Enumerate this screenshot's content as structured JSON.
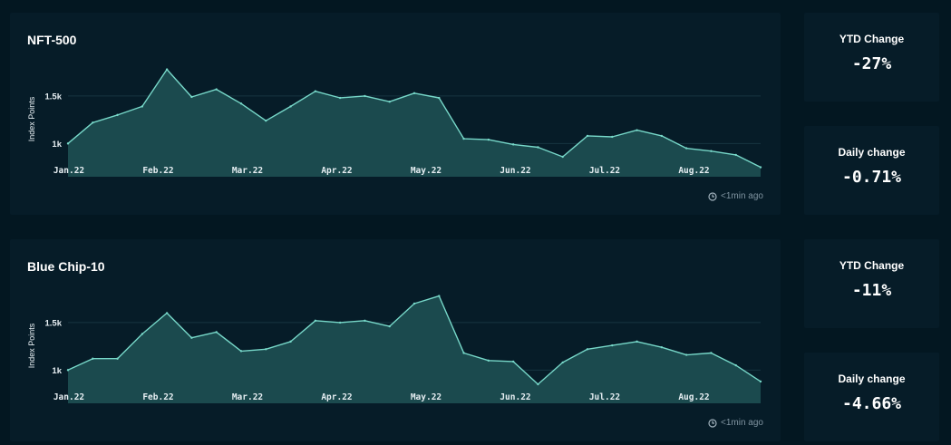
{
  "charts": [
    {
      "title": "NFT-500",
      "updated": "<1min ago",
      "ylabel": "Index Points",
      "yticks": [
        "1.5k",
        "1k"
      ],
      "xticks": [
        "Jan.22",
        "Feb.22",
        "Mar.22",
        "Apr.22",
        "May.22",
        "Jun.22",
        "Jul.22",
        "Aug.22"
      ],
      "stats": {
        "ytd_label": "YTD Change",
        "ytd_value": "-27%",
        "daily_label": "Daily change",
        "daily_value": "-0.71%"
      }
    },
    {
      "title": "Blue Chip-10",
      "updated": "<1min ago",
      "ylabel": "Index Points",
      "yticks": [
        "1.5k",
        "1k"
      ],
      "xticks": [
        "Jan.22",
        "Feb.22",
        "Mar.22",
        "Apr.22",
        "May.22",
        "Jun.22",
        "Jul.22",
        "Aug.22"
      ],
      "stats": {
        "ytd_label": "YTD Change",
        "ytd_value": "-11%",
        "daily_label": "Daily change",
        "daily_value": "-4.66%"
      }
    }
  ],
  "chart_data": [
    {
      "type": "area",
      "title": "NFT-500",
      "ylabel": "Index Points",
      "ylim": [
        650,
        1900
      ],
      "x": [
        "Jan.22",
        "Jan.22",
        "Jan.22",
        "Feb.22",
        "Feb.22",
        "Feb.22",
        "Feb.22",
        "Mar.22",
        "Mar.22",
        "Mar.22",
        "Apr.22",
        "Apr.22",
        "Apr.22",
        "Apr.22",
        "May.22",
        "May.22",
        "May.22",
        "May.22",
        "Jun.22",
        "Jun.22",
        "Jun.22",
        "Jul.22",
        "Jul.22",
        "Jul.22",
        "Jul.22",
        "Aug.22",
        "Aug.22",
        "Aug.22",
        "Aug.22"
      ],
      "values": [
        1000,
        1220,
        1300,
        1390,
        1780,
        1490,
        1570,
        1420,
        1240,
        1390,
        1550,
        1480,
        1500,
        1440,
        1530,
        1480,
        1050,
        1040,
        990,
        960,
        860,
        1080,
        1070,
        1140,
        1080,
        950,
        920,
        880,
        750
      ]
    },
    {
      "type": "area",
      "title": "Blue Chip-10",
      "ylabel": "Index Points",
      "ylim": [
        650,
        1900
      ],
      "x": [
        "Jan.22",
        "Jan.22",
        "Jan.22",
        "Feb.22",
        "Feb.22",
        "Feb.22",
        "Feb.22",
        "Mar.22",
        "Mar.22",
        "Mar.22",
        "Apr.22",
        "Apr.22",
        "Apr.22",
        "Apr.22",
        "May.22",
        "May.22",
        "May.22",
        "May.22",
        "Jun.22",
        "Jun.22",
        "Jun.22",
        "Jul.22",
        "Jul.22",
        "Jul.22",
        "Jul.22",
        "Aug.22",
        "Aug.22",
        "Aug.22",
        "Aug.22"
      ],
      "values": [
        1000,
        1120,
        1120,
        1380,
        1600,
        1340,
        1400,
        1200,
        1220,
        1300,
        1520,
        1500,
        1520,
        1460,
        1700,
        1780,
        1180,
        1100,
        1090,
        850,
        1080,
        1220,
        1260,
        1300,
        1240,
        1160,
        1180,
        1050,
        880
      ]
    }
  ]
}
